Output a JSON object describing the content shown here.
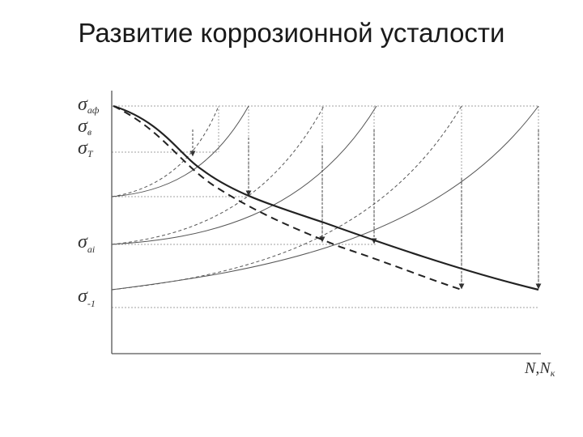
{
  "title": "Развитие коррозионной усталости",
  "y_labels": [
    {
      "symbol": "σ",
      "sub": "аф"
    },
    {
      "symbol": "σ",
      "sub": "в"
    },
    {
      "symbol": "σ",
      "sub": "T"
    },
    {
      "symbol": "σ",
      "sub": "ai"
    },
    {
      "symbol": "σ",
      "sub": "-1"
    }
  ],
  "x_label": {
    "main": "N,N",
    "sub": "к"
  },
  "colors": {
    "axis": "#555555",
    "grid": "#9a9a9a",
    "curve": "#2a2a2a",
    "thin": "#555555"
  }
}
